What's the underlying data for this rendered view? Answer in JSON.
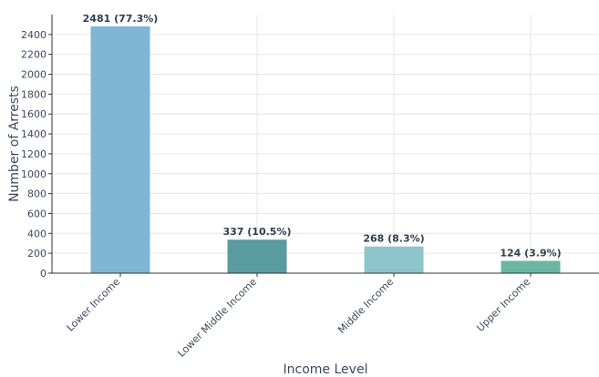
{
  "chart_data": {
    "type": "bar",
    "categories": [
      "Lower Income",
      "Lower Middle Income",
      "Middle Income",
      "Upper Income"
    ],
    "values": [
      2481,
      337,
      268,
      124
    ],
    "data_labels": [
      "2481 (77.3%)",
      "337 (10.5%)",
      "268 (8.3%)",
      "124 (3.9%)"
    ],
    "colors": [
      "#7fb5d5",
      "#5a9ba0",
      "#8ec4cc",
      "#6bb5a3"
    ],
    "xlabel": "Income Level",
    "ylabel": "Number of Arrests",
    "ylim": [
      0,
      2600
    ],
    "yticks": [
      0,
      200,
      400,
      600,
      800,
      1000,
      1200,
      1400,
      1600,
      1800,
      2000,
      2200,
      2400
    ],
    "grid": true
  }
}
